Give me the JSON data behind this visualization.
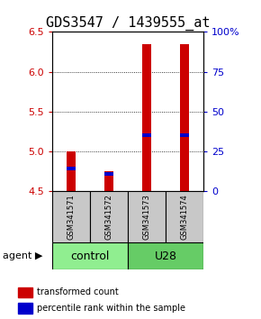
{
  "title": "GDS3547 / 1439555_at",
  "samples": [
    "GSM341571",
    "GSM341572",
    "GSM341573",
    "GSM341574"
  ],
  "group_colors": {
    "control": "#90EE90",
    "U28": "#66CC66"
  },
  "group_spans": [
    [
      "control",
      0,
      1
    ],
    [
      "U28",
      2,
      3
    ]
  ],
  "bar_bottom": 4.5,
  "transformed_counts": [
    5.0,
    4.75,
    6.35,
    6.35
  ],
  "percentile_ranks": [
    4.79,
    4.72,
    5.21,
    5.21
  ],
  "ylim_left": [
    4.5,
    6.5
  ],
  "ylim_right": [
    0,
    100
  ],
  "yticks_left": [
    4.5,
    5.0,
    5.5,
    6.0,
    6.5
  ],
  "yticks_right": [
    0,
    25,
    50,
    75,
    100
  ],
  "yticklabels_right": [
    "0",
    "25",
    "50",
    "75",
    "100%"
  ],
  "grid_lines": [
    5.0,
    5.5,
    6.0
  ],
  "bar_color": "#CC0000",
  "percentile_color": "#0000CC",
  "bar_width": 0.25,
  "sample_box_color": "#C8C8C8",
  "legend_red_label": "transformed count",
  "legend_blue_label": "percentile rank within the sample",
  "agent_label": "agent",
  "title_fontsize": 11,
  "tick_fontsize": 8,
  "sample_fontsize": 6,
  "group_fontsize": 9,
  "legend_fontsize": 7,
  "left_tick_color": "#CC0000",
  "right_tick_color": "#0000CC"
}
